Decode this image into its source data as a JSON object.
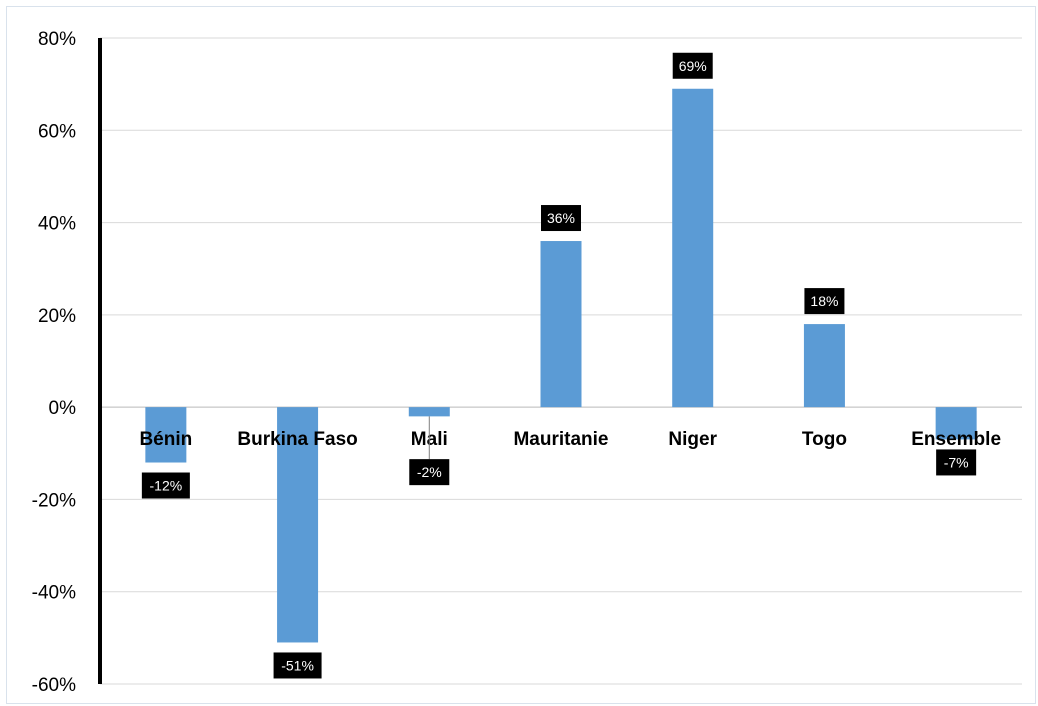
{
  "chart_data": {
    "type": "bar",
    "categories": [
      "Bénin",
      "Burkina Faso",
      "Mali",
      "Mauritanie",
      "Niger",
      "Togo",
      "Ensemble"
    ],
    "values": [
      -12,
      -51,
      -2,
      36,
      69,
      18,
      -7
    ],
    "data_labels": [
      "-12%",
      "-51%",
      "-2%",
      "36%",
      "69%",
      "18%",
      "-7%"
    ],
    "y_ticks": [
      80,
      60,
      40,
      20,
      0,
      -20,
      -40,
      -60
    ],
    "y_tick_labels": [
      "80%",
      "60%",
      "40%",
      "20%",
      "0%",
      "-20%",
      "-40%",
      "-60%"
    ],
    "ylim": [
      -60,
      80
    ],
    "title": "",
    "xlabel": "",
    "ylabel": "",
    "grid": true,
    "legend": "none",
    "bar_color": "#5b9bd5",
    "label_background": "#000000",
    "gridline_color": "#d9d9d9"
  }
}
